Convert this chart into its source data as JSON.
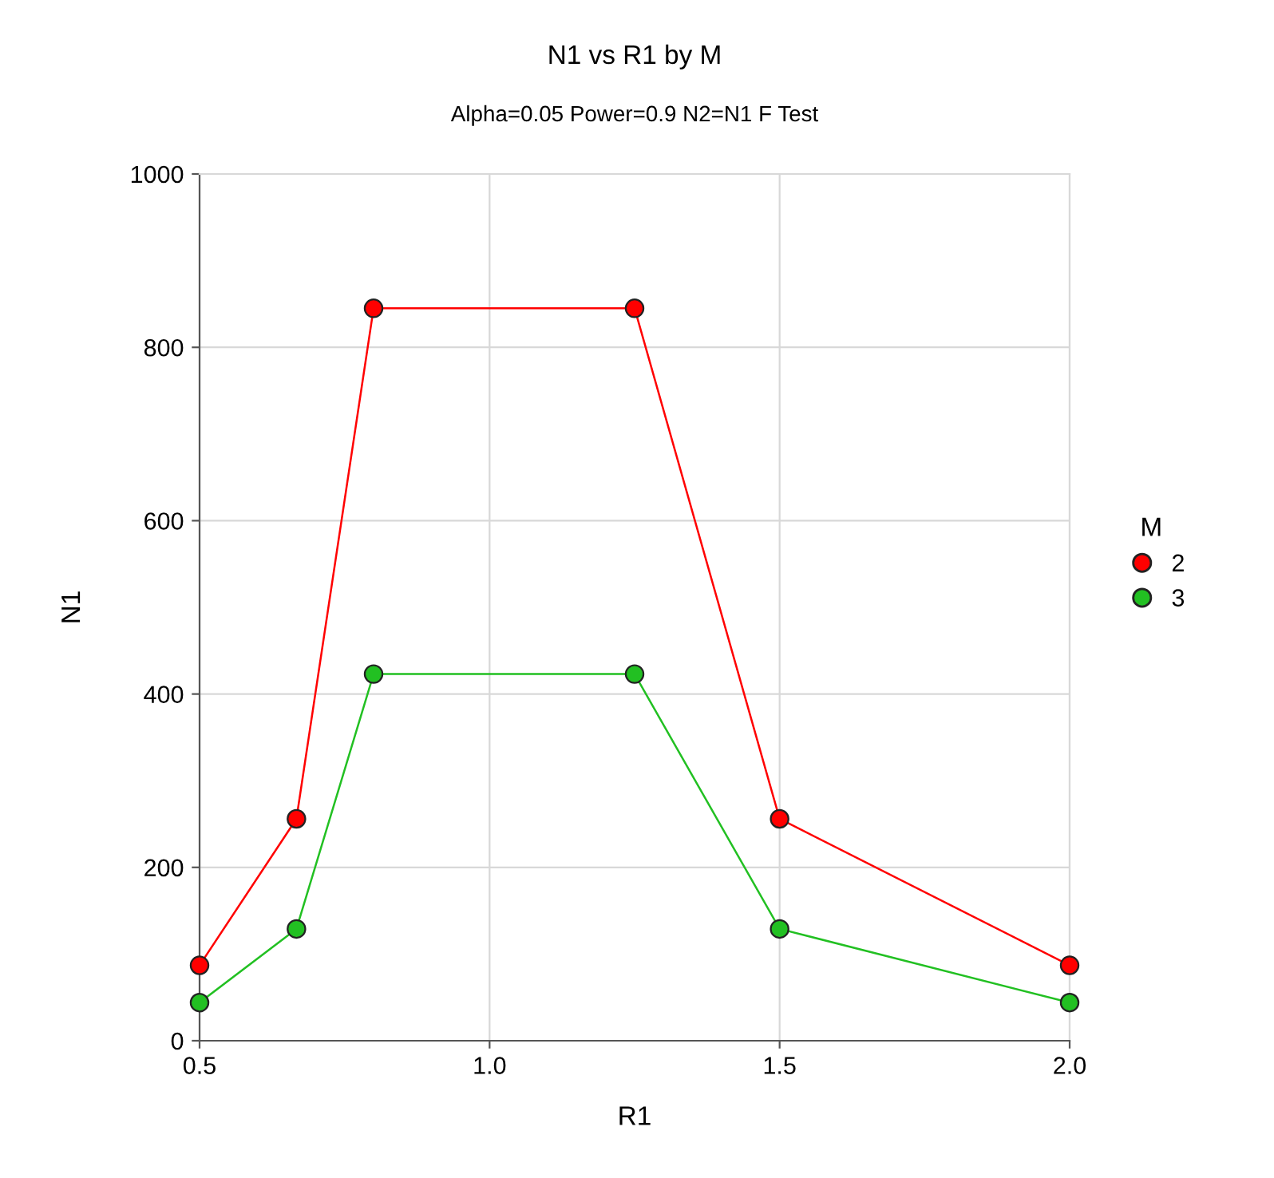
{
  "chart_data": {
    "type": "line",
    "title": "N1 vs R1 by M",
    "subtitle": "Alpha=0.05 Power=0.9 N2=N1 F Test",
    "xlabel": "R1",
    "ylabel": "N1",
    "legend_title": "M",
    "x": [
      0.5,
      0.667,
      0.8,
      1.25,
      1.5,
      2.0
    ],
    "series": [
      {
        "name": "2",
        "color": "#ff0000",
        "values": [
          87,
          256,
          845,
          845,
          256,
          87
        ]
      },
      {
        "name": "3",
        "color": "#22c022",
        "values": [
          44,
          129,
          423,
          423,
          129,
          44
        ]
      }
    ],
    "xlim": [
      0.5,
      2.0
    ],
    "xticks": [
      {
        "value": 0.5,
        "label": "0.5"
      },
      {
        "value": 1.0,
        "label": "1.0"
      },
      {
        "value": 1.5,
        "label": "1.5"
      },
      {
        "value": 2.0,
        "label": "2.0"
      }
    ],
    "ylim": [
      0,
      1000
    ],
    "yticks": [
      0,
      200,
      400,
      600,
      800,
      1000
    ],
    "grid": true,
    "legend": "right",
    "marker": "circle",
    "line_style": "solid"
  }
}
